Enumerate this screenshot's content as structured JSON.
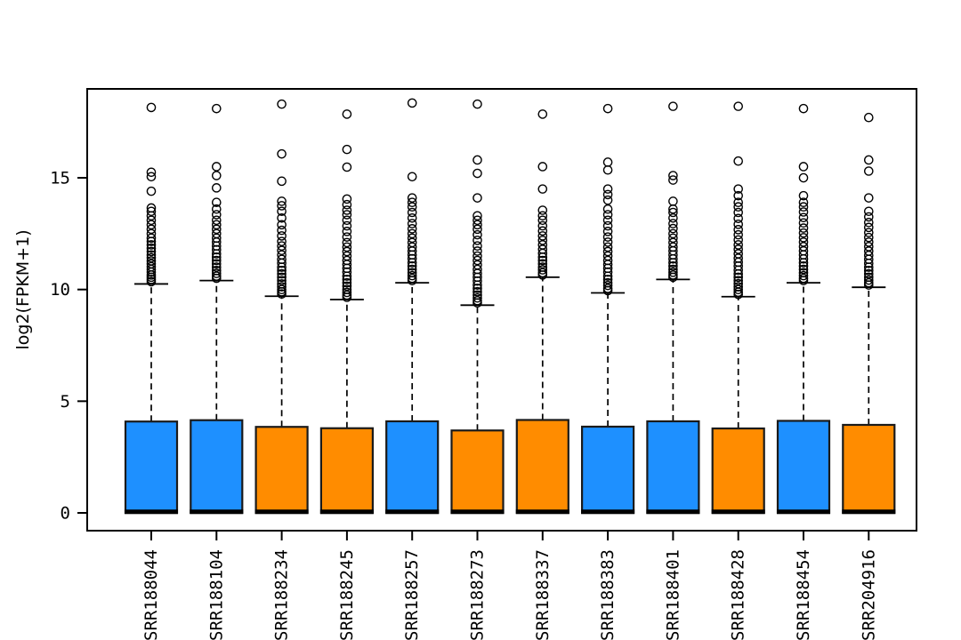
{
  "figure": {
    "kind": "R-style boxplot of RNA-seq expression per sample",
    "background": "#ffffff"
  },
  "chart_data": {
    "type": "boxplot",
    "title": "",
    "xlabel": "",
    "ylabel": "log2(FPKM+1)",
    "yticks": [
      0,
      5,
      10,
      15
    ],
    "ylim": [
      -0.8,
      19.0
    ],
    "grid": false,
    "legend": null,
    "colors": {
      "blue": "#1E90FF",
      "orange": "#FF8C00",
      "box_border": "#1a1a1a",
      "line": "#000000"
    },
    "samples": [
      {
        "label": "SRR188044",
        "color": "blue",
        "q1": 0,
        "median": 0.05,
        "q3": 4.09,
        "whisker_low": 0,
        "whisker_high": 10.25,
        "outliers": [
          10.35,
          10.45,
          10.55,
          10.65,
          10.78,
          10.9,
          11.02,
          11.15,
          11.28,
          11.42,
          11.55,
          11.7,
          11.85,
          12.0,
          12.15,
          12.3,
          12.5,
          12.7,
          12.9,
          13.1,
          13.3,
          13.5,
          13.65,
          14.4,
          15.05,
          15.25,
          18.15
        ]
      },
      {
        "label": "SRR188104",
        "color": "blue",
        "q1": 0,
        "median": 0.05,
        "q3": 4.15,
        "whisker_low": 0,
        "whisker_high": 10.4,
        "outliers": [
          10.5,
          10.6,
          10.72,
          10.85,
          11.0,
          11.15,
          11.3,
          11.45,
          11.6,
          11.78,
          11.95,
          12.12,
          12.3,
          12.5,
          12.7,
          12.9,
          13.1,
          13.35,
          13.6,
          13.9,
          14.55,
          15.1,
          15.5,
          18.1
        ]
      },
      {
        "label": "SRR188234",
        "color": "orange",
        "q1": 0,
        "median": 0.05,
        "q3": 3.85,
        "whisker_low": 0,
        "whisker_high": 9.7,
        "outliers": [
          9.8,
          9.9,
          10.0,
          10.12,
          10.25,
          10.4,
          10.55,
          10.7,
          10.85,
          11.0,
          11.18,
          11.35,
          11.55,
          11.75,
          11.95,
          12.15,
          12.4,
          12.65,
          12.9,
          13.2,
          13.5,
          13.75,
          13.95,
          14.85,
          16.07,
          18.3
        ]
      },
      {
        "label": "SRR188245",
        "color": "orange",
        "q1": 0,
        "median": 0.05,
        "q3": 3.79,
        "whisker_low": 0,
        "whisker_high": 9.55,
        "outliers": [
          9.65,
          9.75,
          9.87,
          10.0,
          10.15,
          10.3,
          10.45,
          10.6,
          10.78,
          10.95,
          11.12,
          11.3,
          11.5,
          11.7,
          11.9,
          12.1,
          12.35,
          12.6,
          12.85,
          13.1,
          13.35,
          13.55,
          13.8,
          14.05,
          15.48,
          16.27,
          17.85
        ]
      },
      {
        "label": "SRR188257",
        "color": "blue",
        "q1": 0,
        "median": 0.05,
        "q3": 4.1,
        "whisker_low": 0,
        "whisker_high": 10.3,
        "outliers": [
          10.4,
          10.5,
          10.62,
          10.75,
          10.9,
          11.05,
          11.2,
          11.38,
          11.55,
          11.72,
          11.9,
          12.1,
          12.3,
          12.5,
          12.72,
          12.95,
          13.2,
          13.45,
          13.7,
          13.9,
          14.1,
          15.05,
          18.35
        ]
      },
      {
        "label": "SRR188273",
        "color": "orange",
        "q1": 0,
        "median": 0.05,
        "q3": 3.69,
        "whisker_low": 0,
        "whisker_high": 9.3,
        "outliers": [
          9.4,
          9.5,
          9.62,
          9.75,
          9.9,
          10.05,
          10.2,
          10.38,
          10.55,
          10.72,
          10.9,
          11.1,
          11.3,
          11.5,
          11.72,
          11.95,
          12.2,
          12.45,
          12.7,
          12.9,
          13.1,
          13.3,
          14.1,
          15.2,
          15.8,
          18.3
        ]
      },
      {
        "label": "SRR188337",
        "color": "orange",
        "q1": 0,
        "median": 0.05,
        "q3": 4.16,
        "whisker_low": 0,
        "whisker_high": 10.55,
        "outliers": [
          10.65,
          10.75,
          10.88,
          11.0,
          11.15,
          11.3,
          11.45,
          11.62,
          11.8,
          12.0,
          12.2,
          12.4,
          12.62,
          12.85,
          13.1,
          13.3,
          13.55,
          14.5,
          15.5,
          17.85
        ]
      },
      {
        "label": "SRR188383",
        "color": "blue",
        "q1": 0,
        "median": 0.05,
        "q3": 3.86,
        "whisker_low": 0,
        "whisker_high": 9.85,
        "outliers": [
          9.95,
          10.05,
          10.18,
          10.3,
          10.45,
          10.6,
          10.78,
          10.95,
          11.12,
          11.3,
          11.5,
          11.7,
          11.9,
          12.12,
          12.35,
          12.6,
          12.85,
          13.1,
          13.35,
          13.6,
          14.0,
          14.25,
          14.5,
          15.35,
          15.7,
          18.1
        ]
      },
      {
        "label": "SRR188401",
        "color": "blue",
        "q1": 0,
        "median": 0.05,
        "q3": 4.1,
        "whisker_low": 0,
        "whisker_high": 10.45,
        "outliers": [
          10.55,
          10.65,
          10.77,
          10.9,
          11.05,
          11.2,
          11.37,
          11.55,
          11.73,
          11.9,
          12.1,
          12.3,
          12.5,
          12.73,
          12.95,
          13.2,
          13.45,
          13.6,
          13.95,
          14.9,
          15.1,
          18.2
        ]
      },
      {
        "label": "SRR188428",
        "color": "orange",
        "q1": 0,
        "median": 0.05,
        "q3": 3.78,
        "whisker_low": 0,
        "whisker_high": 9.68,
        "outliers": [
          9.78,
          9.88,
          10.0,
          10.12,
          10.26,
          10.4,
          10.55,
          10.7,
          10.87,
          11.05,
          11.22,
          11.4,
          11.6,
          11.8,
          12.0,
          12.22,
          12.45,
          12.68,
          12.92,
          13.18,
          13.45,
          13.7,
          13.9,
          14.2,
          14.5,
          15.75,
          18.2
        ]
      },
      {
        "label": "SRR188454",
        "color": "blue",
        "q1": 0,
        "median": 0.05,
        "q3": 4.12,
        "whisker_low": 0,
        "whisker_high": 10.3,
        "outliers": [
          10.4,
          10.5,
          10.62,
          10.75,
          10.9,
          11.05,
          11.2,
          11.37,
          11.55,
          11.73,
          11.92,
          12.12,
          12.32,
          12.53,
          12.75,
          12.98,
          13.22,
          13.47,
          13.7,
          13.9,
          14.2,
          15.0,
          15.5,
          18.1
        ]
      },
      {
        "label": "SRR204916",
        "color": "orange",
        "q1": 0,
        "median": 0.05,
        "q3": 3.94,
        "whisker_low": 0,
        "whisker_high": 10.1,
        "outliers": [
          10.2,
          10.3,
          10.42,
          10.55,
          10.7,
          10.85,
          11.0,
          11.17,
          11.35,
          11.53,
          11.72,
          11.92,
          12.12,
          12.33,
          12.55,
          12.78,
          13.0,
          13.25,
          13.5,
          14.1,
          15.3,
          15.8,
          17.7
        ]
      }
    ]
  }
}
